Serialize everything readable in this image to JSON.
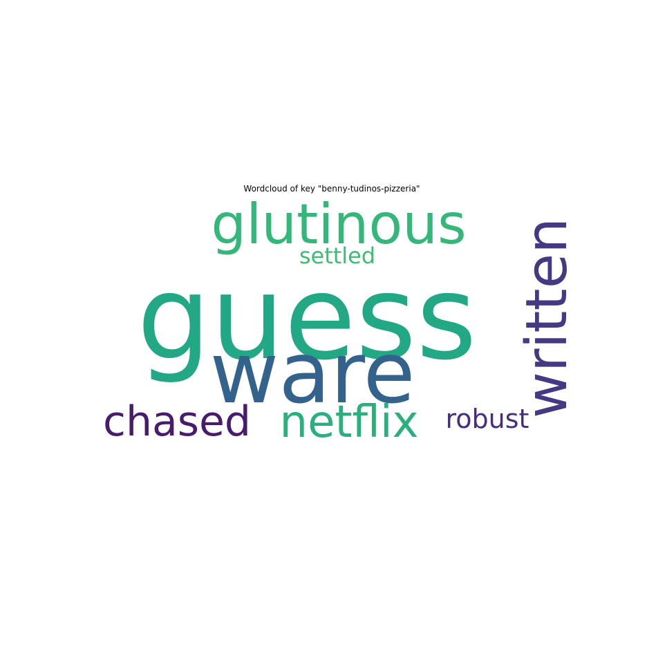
{
  "chart_data": {
    "type": "wordcloud",
    "title": "Wordcloud of key \"benny-tudinos-pizzeria\"",
    "words": [
      {
        "text": "guess",
        "color": "#22a884",
        "rotate": 0
      },
      {
        "text": "ware",
        "color": "#33638d",
        "rotate": 0
      },
      {
        "text": "glutinous",
        "color": "#35b779",
        "rotate": 0
      },
      {
        "text": "written",
        "color": "#443983",
        "rotate": -90
      },
      {
        "text": "chased",
        "color": "#481b6d",
        "rotate": 0
      },
      {
        "text": "netflix",
        "color": "#2ab07f",
        "rotate": 0
      },
      {
        "text": "robust",
        "color": "#472d7b",
        "rotate": 0
      },
      {
        "text": "settled",
        "color": "#3fbc73",
        "rotate": 0
      }
    ],
    "axis": "off"
  }
}
